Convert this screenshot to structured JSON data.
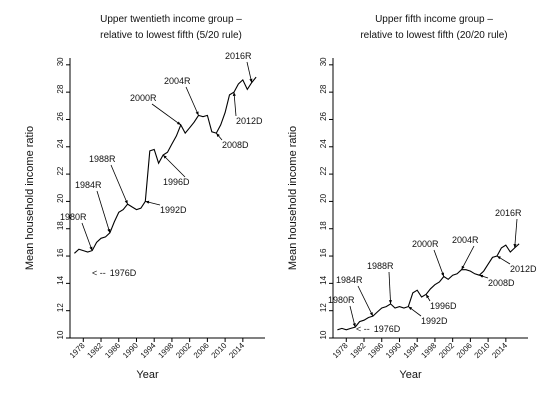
{
  "chart_data": [
    {
      "type": "line",
      "title_lines": [
        "Upper twentieth income group –",
        "relative to lowest fifth (5/20 rule)"
      ],
      "xlabel": "Year",
      "ylabel": "Mean household income ratio",
      "ylim": [
        10,
        30.5
      ],
      "xlim": [
        1975,
        2019
      ],
      "yticks": [
        10,
        12,
        14,
        16,
        18,
        20,
        22,
        24,
        26,
        28,
        30
      ],
      "xticks": [
        1978,
        1982,
        1986,
        1990,
        1994,
        1998,
        2002,
        2006,
        2010,
        2014
      ],
      "grid": false,
      "x": [
        1976,
        1977,
        1978,
        1979,
        1980,
        1981,
        1982,
        1983,
        1984,
        1985,
        1986,
        1987,
        1988,
        1989,
        1990,
        1991,
        1992,
        1993,
        1994,
        1995,
        1996,
        1997,
        1998,
        1999,
        2000,
        2001,
        2002,
        2003,
        2004,
        2005,
        2006,
        2007,
        2008,
        2009,
        2010,
        2011,
        2012,
        2013,
        2014,
        2015,
        2016,
        2017
      ],
      "y": [
        16.2,
        16.5,
        16.4,
        16.3,
        16.4,
        17.0,
        17.3,
        17.4,
        17.7,
        18.5,
        19.2,
        19.4,
        19.8,
        19.6,
        19.4,
        19.5,
        20.0,
        23.7,
        23.8,
        22.8,
        23.4,
        23.6,
        24.2,
        24.8,
        25.6,
        25.0,
        25.4,
        25.8,
        26.3,
        26.2,
        26.3,
        25.1,
        25.0,
        25.6,
        26.5,
        27.8,
        28.0,
        28.6,
        28.9,
        28.2,
        28.7,
        29.1
      ],
      "annotations": [
        {
          "label": "1976D",
          "prefix": "< --",
          "x": 1976,
          "y": 16.2
        },
        {
          "label": "1980R",
          "x": 1980,
          "y": 16.4
        },
        {
          "label": "1984R",
          "x": 1984,
          "y": 17.7
        },
        {
          "label": "1988R",
          "x": 1988,
          "y": 19.8
        },
        {
          "label": "1992D",
          "x": 1992,
          "y": 20.0
        },
        {
          "label": "1996D",
          "x": 1996,
          "y": 23.4
        },
        {
          "label": "2000R",
          "x": 2000,
          "y": 25.6
        },
        {
          "label": "2004R",
          "x": 2004,
          "y": 26.3
        },
        {
          "label": "2008D",
          "x": 2008,
          "y": 25.0
        },
        {
          "label": "2012D",
          "x": 2012,
          "y": 28.0
        },
        {
          "label": "2016R",
          "x": 2016,
          "y": 28.7
        }
      ]
    },
    {
      "type": "line",
      "title_lines": [
        "Upper fifth income group –",
        "relative to lowest fifth (20/20 rule)"
      ],
      "xlabel": "Year",
      "ylabel": "Mean household income ratio",
      "ylim": [
        10,
        30.5
      ],
      "xlim": [
        1975,
        2019
      ],
      "yticks": [
        10,
        12,
        14,
        16,
        18,
        20,
        22,
        24,
        26,
        28,
        30
      ],
      "xticks": [
        1978,
        1982,
        1986,
        1990,
        1994,
        1998,
        2002,
        2006,
        2010,
        2014
      ],
      "grid": false,
      "x": [
        1976,
        1977,
        1978,
        1979,
        1980,
        1981,
        1982,
        1983,
        1984,
        1985,
        1986,
        1987,
        1988,
        1989,
        1990,
        1991,
        1992,
        1993,
        1994,
        1995,
        1996,
        1997,
        1998,
        1999,
        2000,
        2001,
        2002,
        2003,
        2004,
        2005,
        2006,
        2007,
        2008,
        2009,
        2010,
        2011,
        2012,
        2013,
        2014,
        2015,
        2016,
        2017
      ],
      "y": [
        10.6,
        10.7,
        10.6,
        10.7,
        10.8,
        11.2,
        11.3,
        11.5,
        11.6,
        11.9,
        12.2,
        12.3,
        12.5,
        12.2,
        12.3,
        12.2,
        12.3,
        13.3,
        13.5,
        13.0,
        13.2,
        13.6,
        13.9,
        14.1,
        14.5,
        14.3,
        14.6,
        14.7,
        15.0,
        15.0,
        14.9,
        14.7,
        14.6,
        14.9,
        15.4,
        15.9,
        16.0,
        16.6,
        16.8,
        16.3,
        16.6,
        16.9
      ],
      "annotations": [
        {
          "label": "1976D",
          "prefix": "< --",
          "x": 1976,
          "y": 10.6
        },
        {
          "label": "1980R",
          "x": 1980,
          "y": 10.8
        },
        {
          "label": "1984R",
          "x": 1984,
          "y": 11.6
        },
        {
          "label": "1988R",
          "x": 1988,
          "y": 12.5
        },
        {
          "label": "1992D",
          "x": 1992,
          "y": 12.3
        },
        {
          "label": "1996D",
          "x": 1996,
          "y": 13.2
        },
        {
          "label": "2000R",
          "x": 2000,
          "y": 14.5
        },
        {
          "label": "2004R",
          "x": 2004,
          "y": 15.0
        },
        {
          "label": "2008D",
          "x": 2008,
          "y": 14.6
        },
        {
          "label": "2012D",
          "x": 2012,
          "y": 16.0
        },
        {
          "label": "2016R",
          "x": 2016,
          "y": 16.6
        }
      ]
    }
  ]
}
